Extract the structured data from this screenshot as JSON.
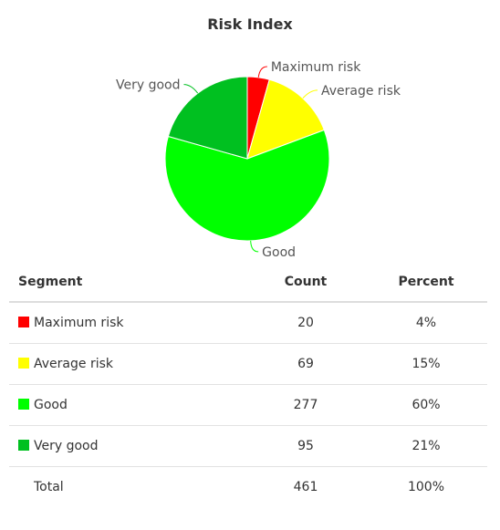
{
  "title": "Risk Index",
  "chart_data": {
    "type": "pie",
    "title": "Risk Index",
    "slices": [
      {
        "label": "Maximum risk",
        "value": 20,
        "color": "#ff0000"
      },
      {
        "label": "Average risk",
        "value": 69,
        "color": "#ffff00"
      },
      {
        "label": "Good",
        "value": 277,
        "color": "#00ff00"
      },
      {
        "label": "Very good",
        "value": 95,
        "color": "#00c020"
      }
    ]
  },
  "table": {
    "headers": {
      "segment": "Segment",
      "count": "Count",
      "percent": "Percent"
    },
    "rows": [
      {
        "segment": "Maximum risk",
        "count": "20",
        "percent": "4%",
        "color": "#ff0000"
      },
      {
        "segment": "Average risk",
        "count": "69",
        "percent": "15%",
        "color": "#ffff00"
      },
      {
        "segment": "Good",
        "count": "277",
        "percent": "60%",
        "color": "#00ff00"
      },
      {
        "segment": "Very good",
        "count": "95",
        "percent": "21%",
        "color": "#00c020"
      }
    ],
    "total": {
      "segment": "Total",
      "count": "461",
      "percent": "100%"
    }
  }
}
